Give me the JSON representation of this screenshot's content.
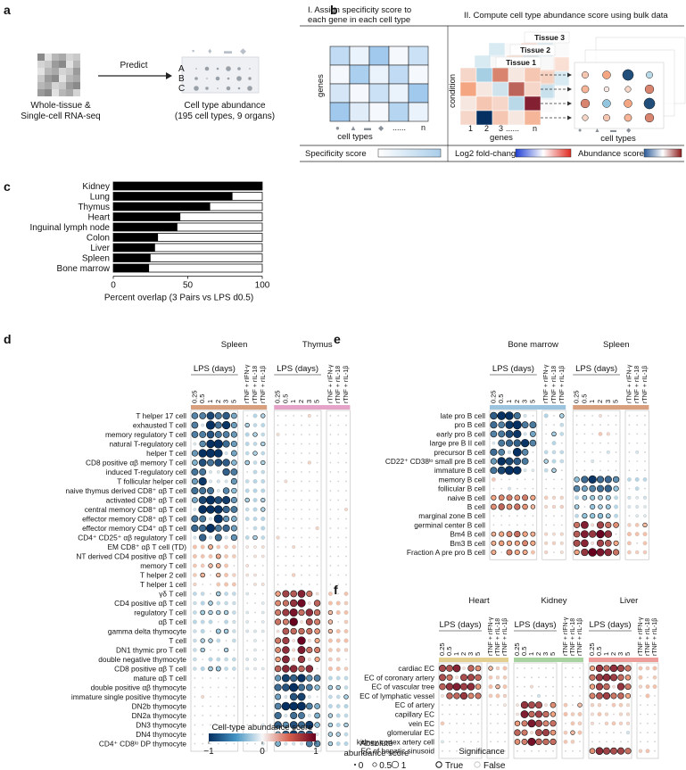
{
  "panel_a": {
    "label": "a",
    "input_caption": [
      "Whole-tissue &",
      "Single-cell RNA-seq"
    ],
    "arrow_label": "Predict",
    "row_letters": [
      "A",
      "B",
      "C"
    ],
    "output_caption": [
      "Cell type abundance",
      "(195 cell types, 9 organs)"
    ]
  },
  "panel_b": {
    "label": "b",
    "step1": [
      "I. Assign specificity score to",
      "each gene in each cell type"
    ],
    "step2": "II. Compute cell type abundance score using bulk data",
    "genes_label": "genes",
    "cell_types_label": "cell types",
    "dots_label": "......",
    "n_label": "n",
    "condition_label": "condition",
    "tissues": [
      "Tissue 3",
      "Tissue 2",
      "Tissue 1"
    ],
    "gene_ticks": [
      "1",
      "2",
      "3",
      "......",
      "n"
    ],
    "legend": {
      "specificity": "Specificity score",
      "log2fc": "Log2 fold-change",
      "abundance": "Abundance score"
    }
  },
  "panel_c": {
    "label": "c"
  },
  "panel_d": {
    "label": "d",
    "groups": [
      "Spleen",
      "Thymus"
    ],
    "lps_label": "LPS (days)",
    "days": [
      "0.25",
      "0.5",
      "1",
      "2",
      "3",
      "5"
    ],
    "treatments": [
      "rTNF + rIFN-γ",
      "rTNF + rIL-18",
      "rTNF + rIL-1β"
    ],
    "rows": [
      "T helper 17 cell",
      "exhausted T cell",
      "memory regulatory T cell",
      "natural T-regulatory cell",
      "helper T cell",
      "CD8 positive αβ memory T cell",
      "induced T-regulatory cell",
      "T follicular helper cell",
      "naive thymus derived CD8⁺ αβ T cell",
      "activated CD8⁺ αβ T cell",
      "central memory CD8⁺ αβ T cell",
      "effector memory CD8⁺ αβ T cell",
      "effector memory CD4⁺ αβ T cell",
      "CD4⁺ CD25⁺ αβ regulatory T cell",
      "EM CD8⁺ αβ T cell (TD)",
      "NT derived CD4 positive αβ T cell",
      "memory T cell",
      "T helper 2 cell",
      "T helper 1 cell",
      "γδ T cell",
      "CD4 positive αβ T cell",
      "regulatory T cell",
      "αβ T cell",
      "gamma delta thymocyte",
      "T cell",
      "DN1 thymic pro T cell",
      "double negative thymocyte",
      "CD8 positive αβ T cell",
      "mature αβ T cell",
      "double positive αβ thymocyte",
      "immature single positive thymocyte",
      "DN2b thymocyte",
      "DN2a thymocyte",
      "DN3 thymocyte",
      "DN4 thymocyte",
      "CD4⁺ CD8ˡᵒ DP thymocyte"
    ]
  },
  "panel_e": {
    "label": "e",
    "groups": [
      "Bone marrow",
      "Spleen"
    ],
    "lps_label": "LPS (days)",
    "days": [
      "0.25",
      "0.5",
      "1",
      "2",
      "3",
      "5"
    ],
    "treatments": [
      "rTNF + rIFN-γ",
      "rTNF + rIL-18",
      "rTNF + rIL-1β"
    ],
    "rows": [
      "late pro B cell",
      "pro B cell",
      "early pro B cell",
      "large pre B II cell",
      "precursor B cell",
      "CD22⁺ CD38ˡᵒ small pre B cell",
      "immature B cell",
      "memory B cell",
      "follicular B cell",
      "naive B cell",
      "B cell",
      "marginal zone B cell",
      "germinal center B cell",
      "Bm4 B cell",
      "Bm3 B cell",
      "Fraction A pre pro B cell"
    ]
  },
  "panel_f": {
    "label": "f",
    "groups": [
      "Heart",
      "Kidney",
      "Liver"
    ],
    "lps_label": "LPS (days)",
    "days": [
      "0.25",
      "0.5",
      "1",
      "2",
      "3",
      "5"
    ],
    "treatments": [
      "rTNF + rIFN-γ",
      "rTNF + rIL-18",
      "rTNF + rIL-1β"
    ],
    "rows": [
      "cardiac EC",
      "EC of coronary artery",
      "EC of vascular tree",
      "EC of lymphatic vessel",
      "EC of artery",
      "capillary EC",
      "vein EC",
      "glomerular EC",
      "kidney cortex artery cell",
      "EC of hepatic sinusoid"
    ]
  },
  "legends": {
    "score_title": "Cell-type abundance score",
    "score_ticks": [
      "−1",
      "0",
      "1"
    ],
    "size_title": [
      "Absolute",
      "abundance score"
    ],
    "size_ticks": [
      "0",
      "0.5",
      "1"
    ],
    "sig_title": "Significance",
    "sig_true": "True",
    "sig_false": "False"
  },
  "colors": {
    "thymus_bar": "#e6a3c8",
    "spleen_bar": "#d9a080",
    "bonemarrow_bar": "#9cc4de",
    "heart_bar": "#e3cf8f",
    "kidney_bar": "#a8d3a0",
    "liver_bar": "#ee9e9a",
    "neg": "#053061",
    "pos": "#67001f"
  },
  "chart_data": {
    "type": "bar",
    "title": "",
    "categories": [
      "Kidney",
      "Lung",
      "Thymus",
      "Heart",
      "Inguinal lymph node",
      "Colon",
      "Liver",
      "Spleen",
      "Bone marrow"
    ],
    "values": [
      100,
      80,
      65,
      45,
      43,
      30,
      28,
      25,
      24
    ],
    "xlabel": "Percent overlap (3 Pairs vs LPS d0.5)",
    "ylabel": "",
    "xlim": [
      0,
      100
    ],
    "xticks": [
      "0",
      "50",
      "100"
    ]
  }
}
